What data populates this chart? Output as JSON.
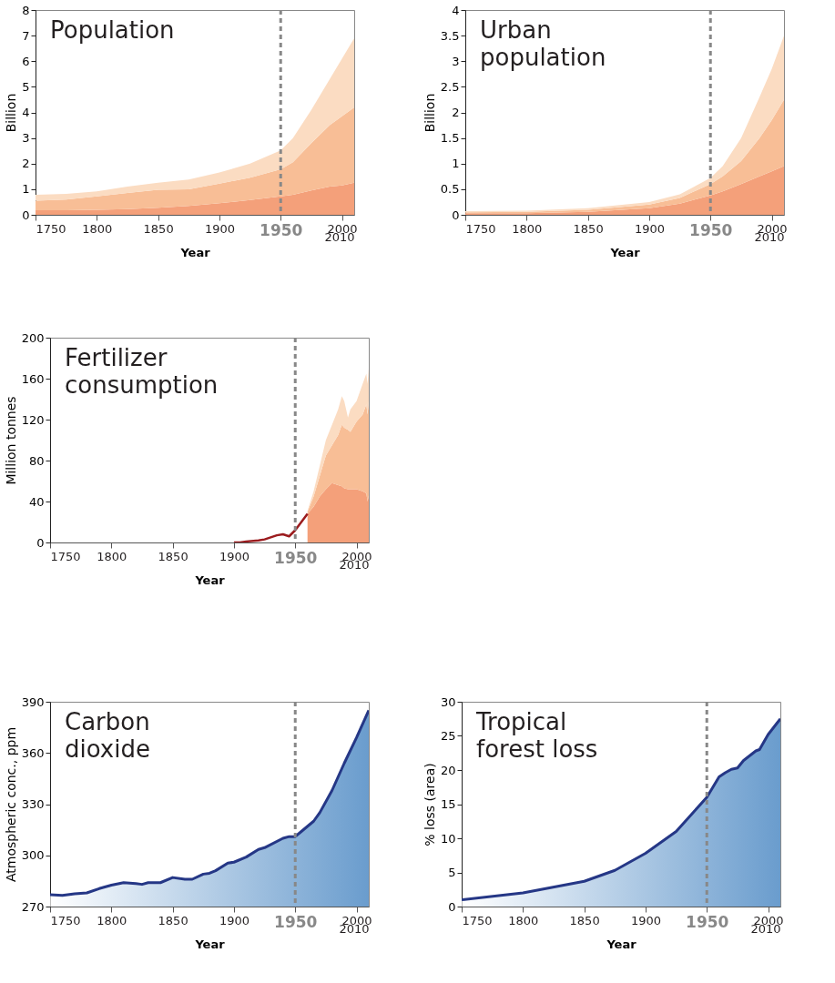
{
  "chart_data": [
    {
      "type": "area",
      "title": "Population",
      "xlabel": "Year",
      "ylabel": "Billion",
      "stacked": true,
      "x": [
        1750,
        1775,
        1800,
        1825,
        1850,
        1875,
        1900,
        1925,
        1950,
        1960,
        1975,
        1990,
        2000,
        2010
      ],
      "series": [
        {
          "color": "#f4a07a",
          "values": [
            0.18,
            0.18,
            0.2,
            0.22,
            0.28,
            0.35,
            0.45,
            0.58,
            0.72,
            0.78,
            0.95,
            1.1,
            1.15,
            1.25
          ]
        },
        {
          "color": "#f8be96",
          "values": [
            0.37,
            0.42,
            0.52,
            0.63,
            0.7,
            0.65,
            0.77,
            0.87,
            1.06,
            1.27,
            1.85,
            2.4,
            2.7,
            2.95
          ]
        },
        {
          "color": "#fbdcc2",
          "values": [
            0.23,
            0.22,
            0.2,
            0.25,
            0.27,
            0.38,
            0.43,
            0.55,
            0.74,
            0.95,
            1.3,
            1.8,
            2.25,
            2.7
          ]
        }
      ],
      "xlim": [
        1750,
        2010
      ],
      "xticks": [
        1750,
        1800,
        1850,
        1900,
        1950,
        2000,
        2010
      ],
      "ylim": [
        0,
        8
      ],
      "yticks": [
        0,
        1,
        2,
        3,
        4,
        5,
        6,
        7,
        8
      ],
      "ref_lines": [
        {
          "axis": "x",
          "value": 1950,
          "color": "#888888",
          "line_style": "dashed"
        }
      ]
    },
    {
      "type": "area",
      "title": "Urban population",
      "xlabel": "Year",
      "ylabel": "Billion",
      "stacked": true,
      "x": [
        1750,
        1800,
        1850,
        1900,
        1925,
        1950,
        1960,
        1975,
        1990,
        2000,
        2010
      ],
      "series": [
        {
          "color": "#f4a07a",
          "values": [
            0.03,
            0.03,
            0.06,
            0.13,
            0.22,
            0.38,
            0.46,
            0.6,
            0.75,
            0.85,
            0.95
          ]
        },
        {
          "color": "#f8be96",
          "values": [
            0.02,
            0.03,
            0.04,
            0.07,
            0.11,
            0.22,
            0.29,
            0.45,
            0.75,
            1.0,
            1.3
          ]
        },
        {
          "color": "#fbdcc2",
          "values": [
            0.02,
            0.02,
            0.03,
            0.05,
            0.07,
            0.12,
            0.2,
            0.45,
            0.8,
            1.0,
            1.25
          ]
        }
      ],
      "xlim": [
        1750,
        2010
      ],
      "xticks": [
        1750,
        1800,
        1850,
        1900,
        1950,
        2000,
        2010
      ],
      "ylim": [
        0,
        4
      ],
      "yticks": [
        0,
        0.5,
        1,
        1.5,
        2,
        2.5,
        3,
        3.5,
        4
      ],
      "ref_lines": [
        {
          "axis": "x",
          "value": 1950,
          "color": "#888888",
          "line_style": "dashed"
        }
      ]
    },
    {
      "type": "area",
      "title": "Fertilizer consumption",
      "xlabel": "Year",
      "ylabel": "Million tonnes",
      "stacked": true,
      "x": [
        1960,
        1965,
        1970,
        1975,
        1980,
        1985,
        1988,
        1990,
        1993,
        1995,
        2000,
        2005,
        2008,
        2009,
        2010
      ],
      "series": [
        {
          "type": "line",
          "color": "#9b1b1e",
          "x": [
            1900,
            1905,
            1910,
            1920,
            1925,
            1930,
            1935,
            1940,
            1945,
            1950,
            1955,
            1960
          ],
          "values": [
            0,
            0,
            1,
            2,
            3,
            5,
            7,
            8,
            6,
            12,
            20,
            28
          ]
        },
        {
          "color": "#f4a07a",
          "values": [
            28,
            35,
            45,
            52,
            58,
            56,
            55,
            53,
            52,
            52,
            52,
            50,
            48,
            40,
            46
          ]
        },
        {
          "color": "#f8be96",
          "values": [
            2,
            10,
            20,
            33,
            37,
            49,
            60,
            59,
            58,
            56,
            66,
            75,
            87,
            85,
            92
          ]
        },
        {
          "color": "#fbdcc2",
          "values": [
            1,
            5,
            10,
            15,
            20,
            25,
            28,
            26,
            12,
            22,
            20,
            30,
            30,
            30,
            32
          ]
        }
      ],
      "xlim": [
        1750,
        2010
      ],
      "xticks": [
        1750,
        1800,
        1850,
        1900,
        1950,
        2000,
        2010
      ],
      "ylim": [
        0,
        200
      ],
      "yticks": [
        0,
        40,
        80,
        120,
        160,
        200
      ],
      "ref_lines": [
        {
          "axis": "x",
          "value": 1950,
          "color": "#888888",
          "line_style": "dashed"
        }
      ]
    },
    {
      "type": "area",
      "title": "Carbon dioxide",
      "xlabel": "Year",
      "ylabel": "Atmospheric conc., ppm",
      "x": [
        1750,
        1760,
        1770,
        1780,
        1790,
        1800,
        1810,
        1820,
        1825,
        1830,
        1840,
        1850,
        1860,
        1866,
        1875,
        1880,
        1885,
        1895,
        1900,
        1910,
        1920,
        1925,
        1940,
        1945,
        1950,
        1955,
        1965,
        1970,
        1980,
        1990,
        2000,
        2010
      ],
      "series": [
        {
          "color": "#2a72b8",
          "values": [
            277,
            276.5,
            277.5,
            278,
            280.5,
            282.5,
            284,
            283.5,
            283,
            284,
            284,
            287,
            286,
            286,
            289,
            289.5,
            291,
            295.5,
            296,
            299,
            303.5,
            304.5,
            310,
            311,
            311,
            314,
            320,
            325,
            338,
            354,
            369,
            385
          ]
        }
      ],
      "xlim": [
        1750,
        2010
      ],
      "xticks": [
        1750,
        1800,
        1850,
        1900,
        1950,
        2000,
        2010
      ],
      "ylim": [
        270,
        390
      ],
      "yticks": [
        270,
        300,
        330,
        360,
        390
      ],
      "ref_lines": [
        {
          "axis": "x",
          "value": 1950,
          "color": "#888888",
          "line_style": "dashed"
        }
      ]
    },
    {
      "type": "area",
      "title": "Tropical forest loss",
      "xlabel": "Year",
      "ylabel": "% loss (area)",
      "x": [
        1750,
        1800,
        1850,
        1875,
        1900,
        1925,
        1940,
        1950,
        1960,
        1965,
        1970,
        1975,
        1980,
        1990,
        1993,
        2000,
        2010
      ],
      "series": [
        {
          "color": "#2a72b8",
          "values": [
            1.0,
            2.0,
            3.7,
            5.3,
            7.8,
            11,
            14,
            16,
            19,
            19.6,
            20.1,
            20.3,
            21.4,
            22.8,
            23.0,
            25.2,
            27.5
          ]
        }
      ],
      "xlim": [
        1750,
        2010
      ],
      "xticks": [
        1750,
        1800,
        1850,
        1900,
        1950,
        2000,
        2010
      ],
      "ylim": [
        0,
        30
      ],
      "yticks": [
        0,
        5,
        10,
        15,
        20,
        25,
        30
      ],
      "ref_lines": [
        {
          "axis": "x",
          "value": 1950,
          "color": "#888888",
          "line_style": "dashed"
        }
      ]
    }
  ]
}
